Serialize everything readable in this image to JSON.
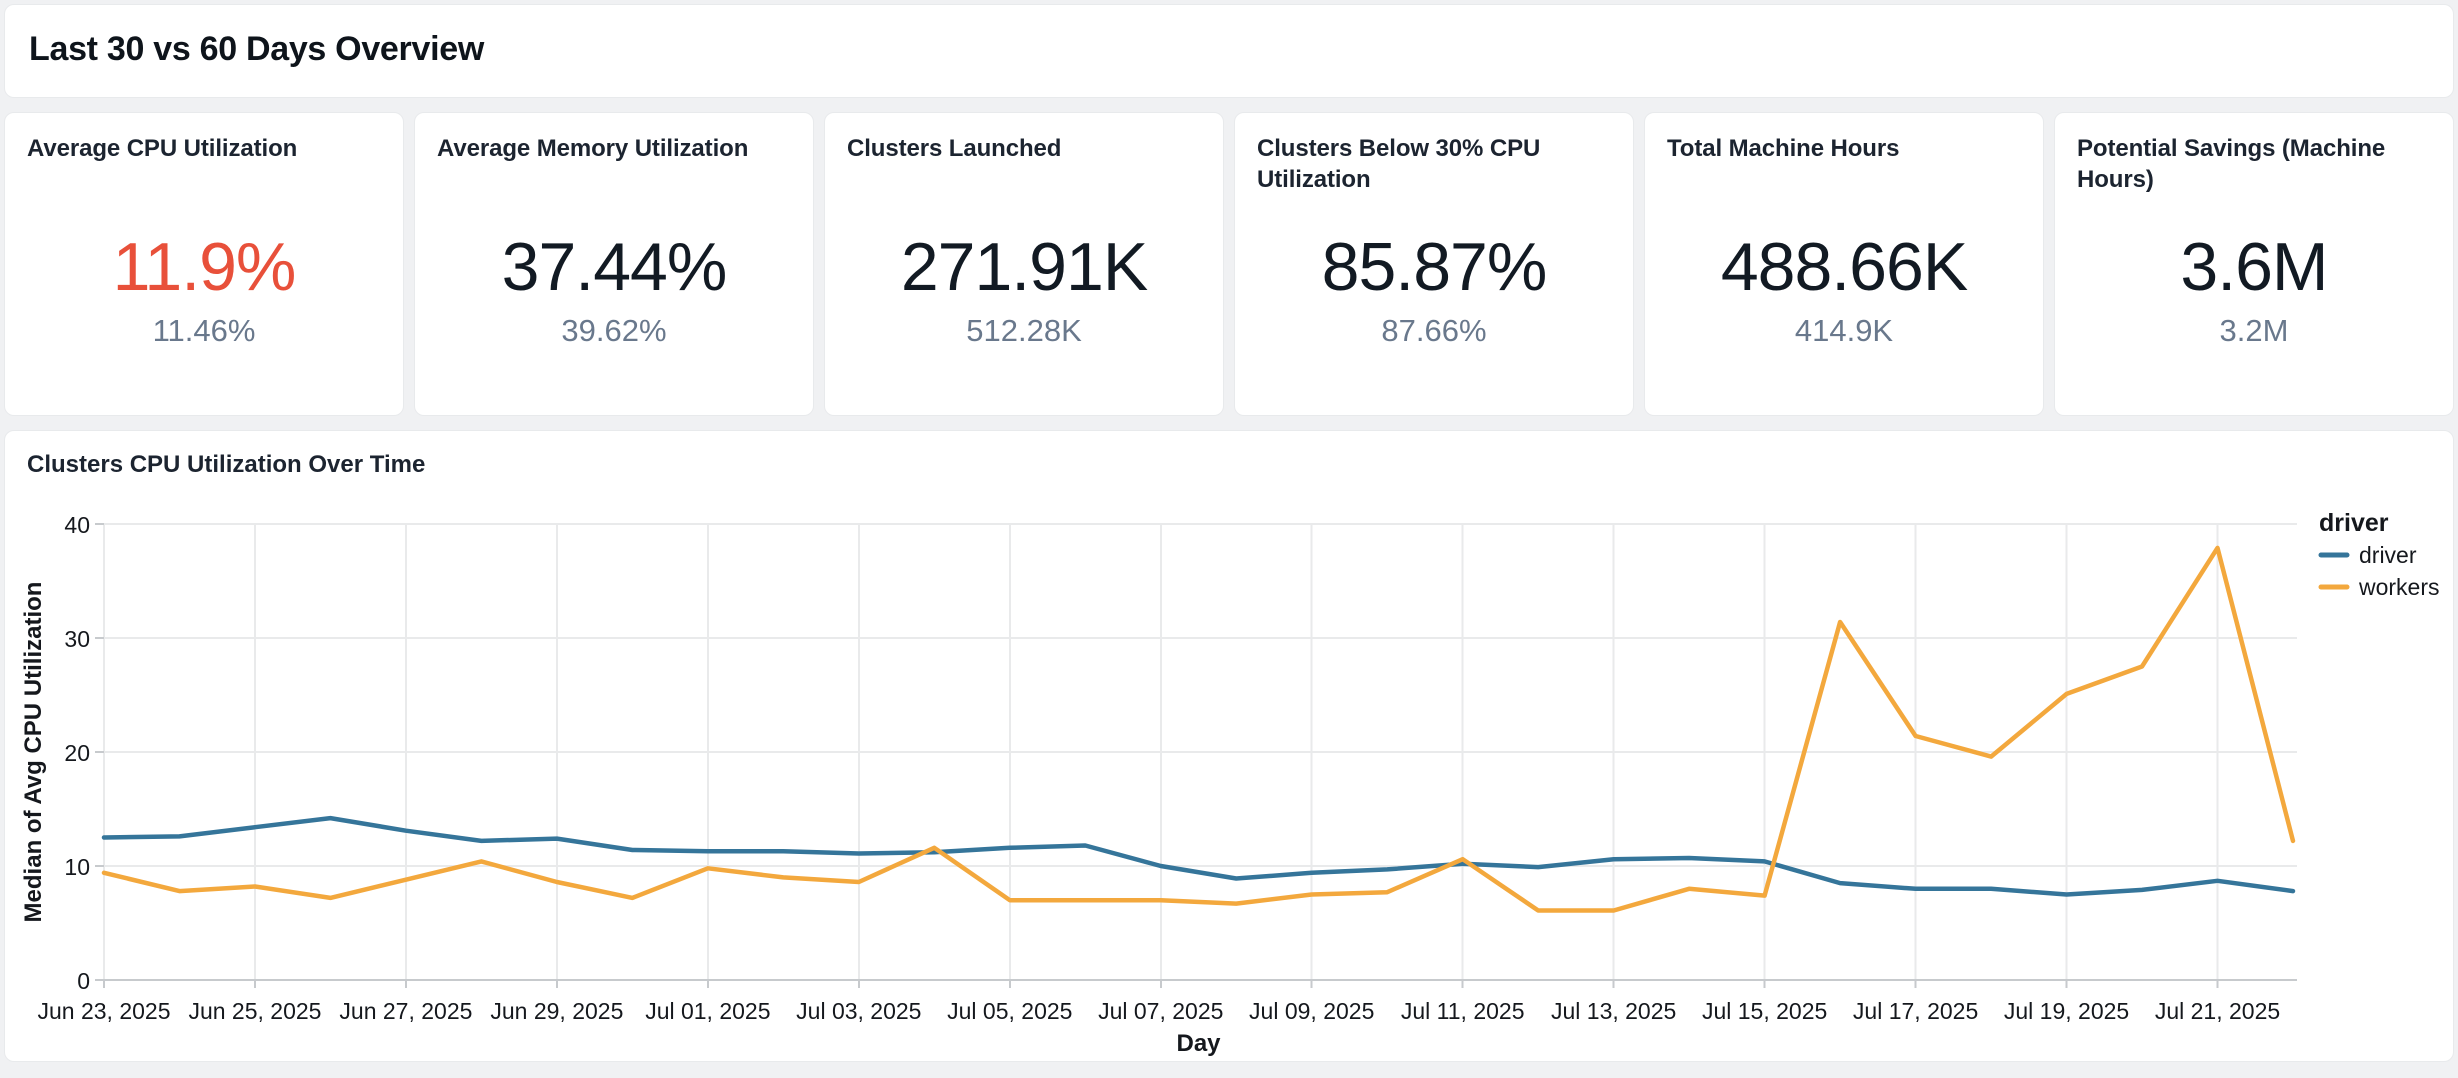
{
  "page": {
    "title": "Last 30 vs 60 Days Overview"
  },
  "kpi_cards": [
    {
      "label": "Average CPU Utilization",
      "value": "11.9%",
      "secondary": "11.46%",
      "value_color": "#e8503a"
    },
    {
      "label": "Average Memory Utilization",
      "value": "37.44%",
      "secondary": "39.62%"
    },
    {
      "label": "Clusters Launched",
      "value": "271.91K",
      "secondary": "512.28K"
    },
    {
      "label": "Clusters Below 30% CPU Utilization",
      "value": "85.87%",
      "secondary": "87.66%"
    },
    {
      "label": "Total Machine Hours",
      "value": "488.66K",
      "secondary": "414.9K"
    },
    {
      "label": "Potential Savings (Machine Hours)",
      "value": "3.6M",
      "secondary": "3.2M"
    }
  ],
  "chart": {
    "title": "Clusters CPU Utilization Over Time"
  },
  "colors": {
    "accent_negative": "#e8503a",
    "secondary_value": "#69788c",
    "driver_line": "#35759a",
    "workers_line": "#f3a83d"
  },
  "chart_data": {
    "type": "line",
    "title": "Clusters CPU Utilization Over Time",
    "xlabel": "Day",
    "ylabel": "Median of Avg CPU Utilization",
    "ylim": [
      0,
      40
    ],
    "yticks": [
      0,
      10,
      20,
      30,
      40
    ],
    "xticks_every": 2,
    "grid": true,
    "legend": {
      "title": "driver",
      "position": "top-right"
    },
    "x": [
      "Jun 23, 2025",
      "Jun 24, 2025",
      "Jun 25, 2025",
      "Jun 26, 2025",
      "Jun 27, 2025",
      "Jun 28, 2025",
      "Jun 29, 2025",
      "Jun 30, 2025",
      "Jul 01, 2025",
      "Jul 02, 2025",
      "Jul 03, 2025",
      "Jul 04, 2025",
      "Jul 05, 2025",
      "Jul 06, 2025",
      "Jul 07, 2025",
      "Jul 08, 2025",
      "Jul 09, 2025",
      "Jul 10, 2025",
      "Jul 11, 2025",
      "Jul 12, 2025",
      "Jul 13, 2025",
      "Jul 14, 2025",
      "Jul 15, 2025",
      "Jul 16, 2025",
      "Jul 17, 2025",
      "Jul 18, 2025",
      "Jul 19, 2025",
      "Jul 20, 2025",
      "Jul 21, 2025",
      "Jul 22, 2025"
    ],
    "series": [
      {
        "name": "driver",
        "color": "#35759a",
        "values": [
          12.5,
          12.6,
          13.4,
          14.2,
          13.1,
          12.2,
          12.4,
          11.4,
          11.3,
          11.3,
          11.1,
          11.2,
          11.6,
          11.8,
          10.0,
          8.9,
          9.4,
          9.7,
          10.2,
          9.9,
          10.6,
          10.7,
          10.4,
          8.5,
          8.0,
          8.0,
          7.5,
          7.9,
          8.7,
          7.8
        ]
      },
      {
        "name": "workers",
        "color": "#f3a83d",
        "values": [
          9.4,
          7.8,
          8.2,
          7.2,
          8.8,
          10.4,
          8.6,
          7.2,
          9.8,
          9.0,
          8.6,
          11.6,
          7.0,
          7.0,
          7.0,
          6.7,
          7.5,
          7.7,
          10.6,
          6.1,
          6.1,
          8.0,
          7.4,
          31.4,
          21.4,
          19.6,
          25.1,
          27.5,
          37.9,
          12.2
        ]
      }
    ]
  }
}
